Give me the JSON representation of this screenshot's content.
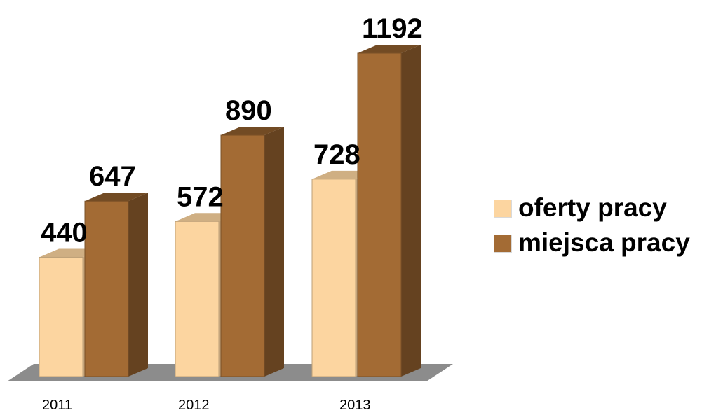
{
  "chart_data": {
    "type": "bar",
    "categories": [
      "2011",
      "2012",
      "2013"
    ],
    "series": [
      {
        "name": "oferty pracy",
        "values": [
          440,
          572,
          728
        ],
        "color": "#FCD5A0"
      },
      {
        "name": "miejsca pracy",
        "values": [
          647,
          890,
          1192
        ],
        "color": "#A36B34"
      }
    ],
    "ylim": [
      0,
      1300
    ],
    "grid": false,
    "legend_position": "right",
    "three_d": true,
    "floor_color": "#8C8C8C"
  }
}
